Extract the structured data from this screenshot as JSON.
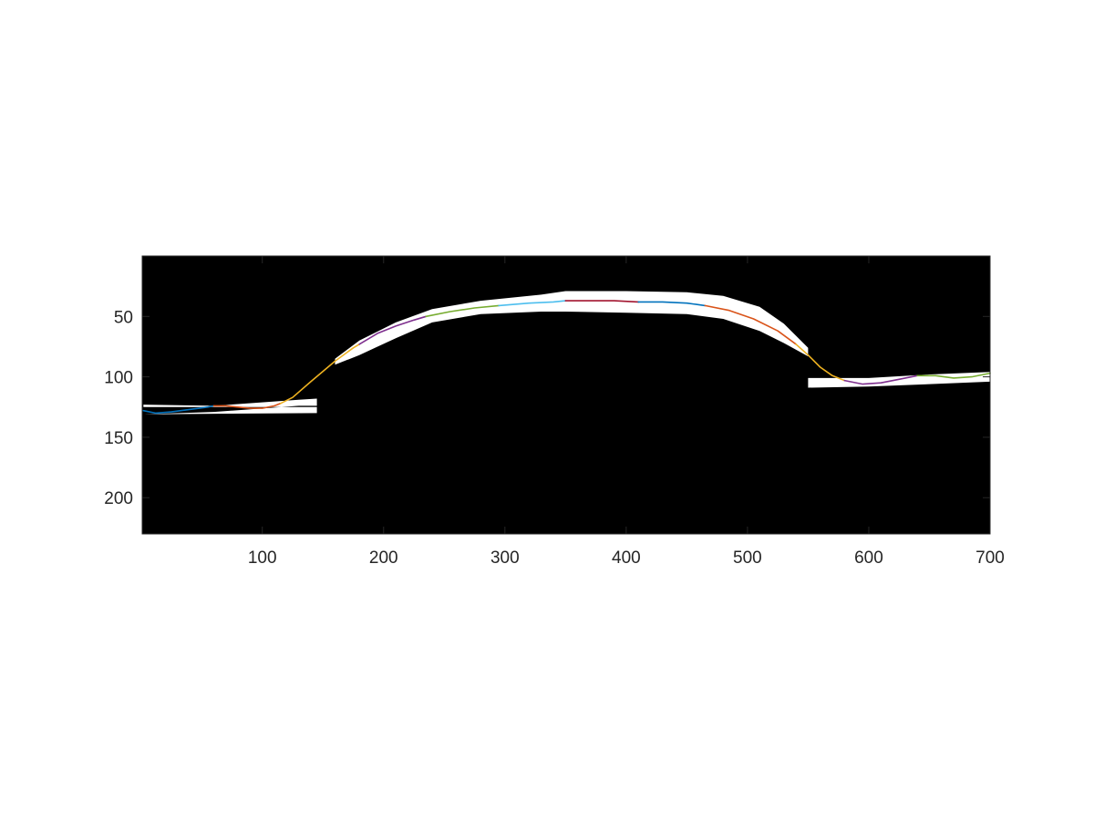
{
  "chart_data": {
    "type": "line",
    "title": "",
    "xlabel": "",
    "ylabel": "",
    "xlim": [
      1,
      700
    ],
    "ylim": [
      0,
      230
    ],
    "y_reversed": true,
    "x_ticks": [
      "100",
      "200",
      "300",
      "400",
      "500",
      "600",
      "700"
    ],
    "y_ticks": [
      "50",
      "100",
      "150",
      "200"
    ],
    "grid": false,
    "legend": "none",
    "background": {
      "kind": "binary-image",
      "colors": {
        "background": "#000000",
        "mask": "#ffffff"
      },
      "mask_regions": [
        {
          "x": [
            2,
            145,
            145,
            130,
            60,
            2
          ],
          "y_top": [
            125,
            125,
            118,
            119,
            124,
            123
          ],
          "y_bottom": [
            131,
            130,
            124,
            124,
            129,
            131
          ]
        },
        {
          "x": [
            160,
            180,
            210,
            240,
            280,
            330,
            350,
            400,
            450,
            480,
            510,
            530,
            550
          ],
          "y_top": [
            85,
            70,
            55,
            44,
            37,
            32,
            29,
            29,
            30,
            33,
            42,
            56,
            76
          ],
          "y_bottom": [
            90,
            82,
            68,
            55,
            48,
            46,
            46,
            47,
            48,
            52,
            62,
            72,
            83
          ]
        },
        {
          "x": [
            550,
            600,
            650,
            700
          ],
          "y_top": [
            101,
            101,
            98,
            96
          ],
          "y_bottom": [
            109,
            108,
            106,
            104
          ]
        }
      ]
    },
    "series": [
      {
        "color": "#0072BD",
        "x": [
          2,
          12,
          25,
          40,
          55,
          60
        ],
        "y": [
          128,
          130,
          129,
          127,
          125,
          124
        ]
      },
      {
        "color": "#D95319",
        "x": [
          60,
          70,
          80,
          90,
          100,
          110,
          115
        ],
        "y": [
          124,
          124,
          125,
          126,
          126,
          124,
          122
        ]
      },
      {
        "color": "#EDB120",
        "x": [
          115,
          125,
          140,
          160,
          175,
          180
        ],
        "y": [
          122,
          117,
          104,
          87,
          76,
          73
        ]
      },
      {
        "color": "#7E2F8E",
        "x": [
          180,
          195,
          210,
          225,
          235
        ],
        "y": [
          73,
          64,
          58,
          53,
          50
        ]
      },
      {
        "color": "#77AC30",
        "x": [
          235,
          255,
          275,
          295
        ],
        "y": [
          50,
          46,
          43,
          41
        ]
      },
      {
        "color": "#4DBEEE",
        "x": [
          295,
          320,
          340,
          350
        ],
        "y": [
          41,
          39,
          38,
          37
        ]
      },
      {
        "color": "#A2142F",
        "x": [
          350,
          370,
          390,
          410
        ],
        "y": [
          37,
          37,
          37,
          38
        ]
      },
      {
        "color": "#0072BD",
        "x": [
          410,
          430,
          450,
          465
        ],
        "y": [
          38,
          38,
          39,
          41
        ]
      },
      {
        "color": "#D95319",
        "x": [
          465,
          485,
          505,
          525,
          540
        ],
        "y": [
          41,
          45,
          52,
          62,
          73
        ]
      },
      {
        "color": "#EDB120",
        "x": [
          540,
          550,
          560,
          570,
          580
        ],
        "y": [
          73,
          82,
          92,
          99,
          103
        ]
      },
      {
        "color": "#7E2F8E",
        "x": [
          580,
          595,
          610,
          625,
          640
        ],
        "y": [
          103,
          106,
          105,
          102,
          99
        ]
      },
      {
        "color": "#77AC30",
        "x": [
          640,
          655,
          670,
          685,
          700
        ],
        "y": [
          99,
          99,
          101,
          100,
          97
        ]
      }
    ]
  }
}
